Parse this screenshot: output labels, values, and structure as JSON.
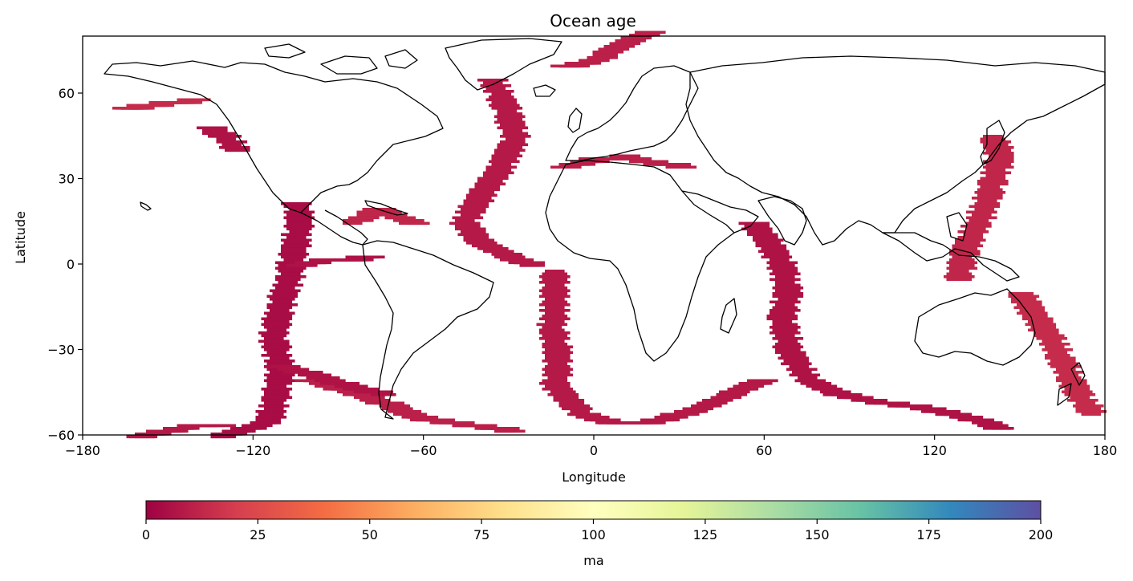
{
  "figure": {
    "title": "Ocean age",
    "xlabel": "Longitude",
    "ylabel": "Latitude",
    "colorbar_label": "ma"
  },
  "chart_data": {
    "type": "heatmap",
    "title": "Ocean age",
    "xlabel": "Longitude",
    "ylabel": "Latitude",
    "xlim": [
      -180,
      180
    ],
    "ylim": [
      -60,
      80
    ],
    "x_ticks": [
      -180,
      -120,
      -60,
      0,
      60,
      120,
      180
    ],
    "x_tick_labels": [
      "−180",
      "−120",
      "−60",
      "0",
      "60",
      "120",
      "180"
    ],
    "y_ticks": [
      -60,
      -30,
      0,
      30,
      60
    ],
    "y_tick_labels": [
      "−60",
      "−30",
      "0",
      "30",
      "60"
    ],
    "colormap": "Spectral",
    "colorbar": {
      "label": "ma",
      "range": [
        0,
        200
      ],
      "ticks": [
        0,
        25,
        50,
        75,
        100,
        125,
        150,
        175,
        200
      ],
      "tick_labels": [
        "0",
        "25",
        "50",
        "75",
        "100",
        "125",
        "150",
        "175",
        "200"
      ],
      "orientation": "horizontal",
      "stops": [
        "#9e0142",
        "#d53e4f",
        "#f46d43",
        "#fdae61",
        "#fee08b",
        "#ffffbf",
        "#e6f598",
        "#abdda4",
        "#66c2a5",
        "#3288bd",
        "#5e4fa2"
      ]
    },
    "grid": false,
    "young_crust_color": "#a00b44",
    "ridges": [
      {
        "name": "",
        "points": [
          [
            -132,
            -60
          ],
          [
            -125,
            -58
          ],
          [
            -115,
            -55
          ],
          [
            -112,
            -45
          ],
          [
            -111,
            -35
          ],
          [
            -113,
            -25
          ],
          [
            -111,
            -15
          ],
          [
            -108,
            -5
          ],
          [
            -106,
            5
          ],
          [
            -104,
            15
          ],
          [
            -105,
            22
          ]
        ],
        "age": 4
      },
      {
        "name": "",
        "points": [
          [
            -104,
            0
          ],
          [
            -95,
            2
          ],
          [
            -85,
            2
          ],
          [
            -80,
            3
          ]
        ],
        "age": 6
      },
      {
        "name": "",
        "points": [
          [
            -36,
            65
          ],
          [
            -31,
            55
          ],
          [
            -28,
            45
          ],
          [
            -33,
            35
          ],
          [
            -40,
            25
          ],
          [
            -46,
            15
          ],
          [
            -40,
            8
          ],
          [
            -30,
            3
          ],
          [
            -22,
            0
          ]
        ],
        "age": 8
      },
      {
        "name": "",
        "points": [
          [
            -14,
            -2
          ],
          [
            -14,
            -12
          ],
          [
            -15,
            -22
          ],
          [
            -13,
            -32
          ],
          [
            -14,
            -42
          ],
          [
            -5,
            -52
          ],
          [
            5,
            -55
          ],
          [
            20,
            -55
          ],
          [
            35,
            -51
          ],
          [
            48,
            -45
          ],
          [
            60,
            -40
          ]
        ],
        "age": 8
      },
      {
        "name": "",
        "points": [
          [
            55,
            15
          ],
          [
            60,
            10
          ],
          [
            66,
            0
          ],
          [
            68,
            -10
          ],
          [
            66,
            -18
          ],
          [
            68,
            -30
          ],
          [
            75,
            -40
          ],
          [
            85,
            -45
          ],
          [
            100,
            -48
          ],
          [
            115,
            -50
          ],
          [
            130,
            -53
          ],
          [
            143,
            -57
          ]
        ],
        "age": 6
      },
      {
        "name": "",
        "points": [
          [
            -100,
            -40
          ],
          [
            -90,
            -43
          ],
          [
            -80,
            -46
          ],
          [
            -70,
            -50
          ],
          [
            -60,
            -54
          ],
          [
            -45,
            -56
          ],
          [
            -30,
            -58
          ]
        ],
        "age": 10
      },
      {
        "name": "",
        "points": [
          [
            -113,
            -35
          ],
          [
            -100,
            -38
          ],
          [
            -88,
            -42
          ],
          [
            -75,
            -45
          ]
        ],
        "age": 6
      },
      {
        "name": "",
        "points": [
          [
            -160,
            -60
          ],
          [
            -150,
            -58
          ],
          [
            -140,
            -56
          ],
          [
            -132,
            -56
          ]
        ],
        "age": 8
      },
      {
        "name": "",
        "points": [
          [
            -135,
            48
          ],
          [
            -130,
            45
          ],
          [
            -126,
            40
          ]
        ],
        "age": 6
      },
      {
        "name": "",
        "points": [
          [
            140,
            45
          ],
          [
            143,
            38
          ],
          [
            140,
            30
          ],
          [
            138,
            22
          ],
          [
            135,
            15
          ],
          [
            130,
            5
          ],
          [
            128,
            -5
          ]
        ],
        "age": 12
      },
      {
        "name": "",
        "points": [
          [
            150,
            -10
          ],
          [
            155,
            -18
          ],
          [
            160,
            -25
          ],
          [
            165,
            -35
          ],
          [
            170,
            -45
          ],
          [
            175,
            -52
          ]
        ],
        "age": 14
      },
      {
        "name": "",
        "points": [
          [
            -10,
            35
          ],
          [
            0,
            37
          ],
          [
            10,
            38
          ],
          [
            20,
            36
          ],
          [
            30,
            35
          ]
        ],
        "age": 10
      },
      {
        "name": "",
        "points": [
          [
            -85,
            15
          ],
          [
            -80,
            18
          ],
          [
            -75,
            20
          ],
          [
            -70,
            17
          ],
          [
            -63,
            15
          ]
        ],
        "age": 12
      },
      {
        "name": "",
        "points": [
          [
            -165,
            55
          ],
          [
            -150,
            57
          ],
          [
            -140,
            58
          ]
        ],
        "age": 14
      },
      {
        "name": "",
        "points": [
          [
            -10,
            70
          ],
          [
            0,
            72
          ],
          [
            10,
            78
          ],
          [
            20,
            82
          ]
        ],
        "age": 10
      }
    ]
  }
}
